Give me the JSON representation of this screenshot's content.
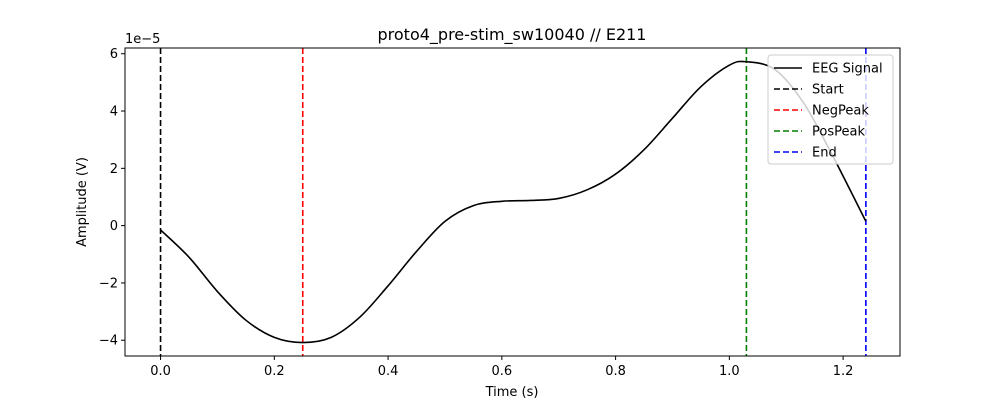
{
  "chart_data": {
    "type": "line",
    "title": "proto4_pre-stim_sw10040 // E211",
    "xlabel": "Time (s)",
    "ylabel": "Amplitude (V)",
    "y_scale_label": "1e−5",
    "xlim": [
      -0.0625,
      1.3
    ],
    "ylim": [
      -4.55,
      6.2
    ],
    "x_ticks": [
      0.0,
      0.2,
      0.4,
      0.6,
      0.8,
      1.0,
      1.2
    ],
    "x_tick_labels": [
      "0.0",
      "0.2",
      "0.4",
      "0.6",
      "0.8",
      "1.0",
      "1.2"
    ],
    "y_ticks": [
      -4,
      -2,
      0,
      2,
      4,
      6
    ],
    "y_tick_labels": [
      "−4",
      "−2",
      "0",
      "2",
      "4",
      "6"
    ],
    "grid": false,
    "legend_position": "top-right",
    "series": [
      {
        "name": "EEG Signal",
        "color": "#000000",
        "style": "solid",
        "x": [
          0.0,
          0.05,
          0.1,
          0.15,
          0.2,
          0.25,
          0.3,
          0.35,
          0.4,
          0.45,
          0.5,
          0.55,
          0.6,
          0.65,
          0.7,
          0.75,
          0.8,
          0.85,
          0.9,
          0.95,
          1.0,
          1.03,
          1.08,
          1.13,
          1.18,
          1.24
        ],
        "values": [
          -0.15,
          -1.1,
          -2.3,
          -3.3,
          -3.9,
          -4.08,
          -3.9,
          -3.2,
          -2.1,
          -0.9,
          0.15,
          0.7,
          0.85,
          0.88,
          0.95,
          1.25,
          1.8,
          2.65,
          3.75,
          4.85,
          5.6,
          5.72,
          5.45,
          4.3,
          2.5,
          0.15
        ]
      }
    ],
    "markers": [
      {
        "name": "Start",
        "x": 0.0,
        "color": "#000000"
      },
      {
        "name": "NegPeak",
        "x": 0.25,
        "color": "#ff0000"
      },
      {
        "name": "PosPeak",
        "x": 1.03,
        "color": "#008000"
      },
      {
        "name": "End",
        "x": 1.24,
        "color": "#0000ff"
      }
    ]
  }
}
